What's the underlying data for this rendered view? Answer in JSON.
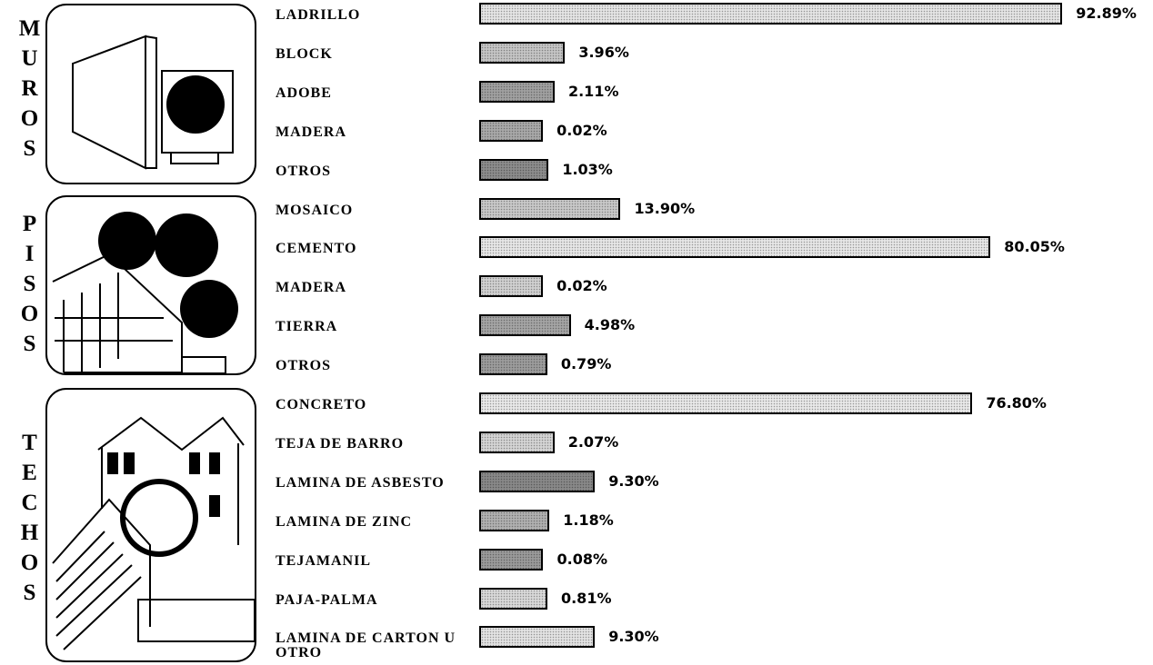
{
  "chart_data": [
    {
      "type": "bar",
      "title": "MUROS",
      "categories": [
        "LADRILLO",
        "BLOCK",
        "ADOBE",
        "MADERA",
        "OTROS"
      ],
      "values": [
        92.89,
        3.96,
        2.11,
        0.02,
        1.03
      ],
      "value_labels": [
        "92.89%",
        "3.96%",
        "2.11%",
        "0.02%",
        "1.03%"
      ],
      "colors": [
        "#e4e4e4",
        "#c4c4c4",
        "#a0a0a0",
        "#a8a8a8",
        "#8c8c8c"
      ]
    },
    {
      "type": "bar",
      "title": "PISOS",
      "categories": [
        "MOSAICO",
        "CEMENTO",
        "MADERA",
        "TIERRA",
        "OTROS"
      ],
      "values": [
        13.9,
        80.05,
        0.02,
        4.98,
        0.79
      ],
      "value_labels": [
        "13.90%",
        "80.05%",
        "0.02%",
        "4.98%",
        "0.79%"
      ],
      "colors": [
        "#c8c8c8",
        "#e6e6e6",
        "#d0d0d0",
        "#a4a4a4",
        "#9c9c9c"
      ]
    },
    {
      "type": "bar",
      "title": "TECHOS",
      "categories": [
        "CONCRETO",
        "TEJA DE BARRO",
        "LAMINA DE ASBESTO",
        "LAMINA DE ZINC",
        "TEJAMANIL",
        "PAJA-PALMA",
        "LAMINA DE CARTON U OTRO"
      ],
      "values": [
        76.8,
        2.07,
        9.3,
        1.18,
        0.08,
        0.81,
        9.3
      ],
      "value_labels": [
        "76.80%",
        "2.07%",
        "9.30%",
        "1.18%",
        "0.08%",
        "0.81%",
        "9.30%"
      ],
      "colors": [
        "#e8e8e8",
        "#d4d4d4",
        "#888888",
        "#b0b0b0",
        "#9a9a9a",
        "#d8d8d8",
        "#e2e2e2"
      ]
    }
  ]
}
